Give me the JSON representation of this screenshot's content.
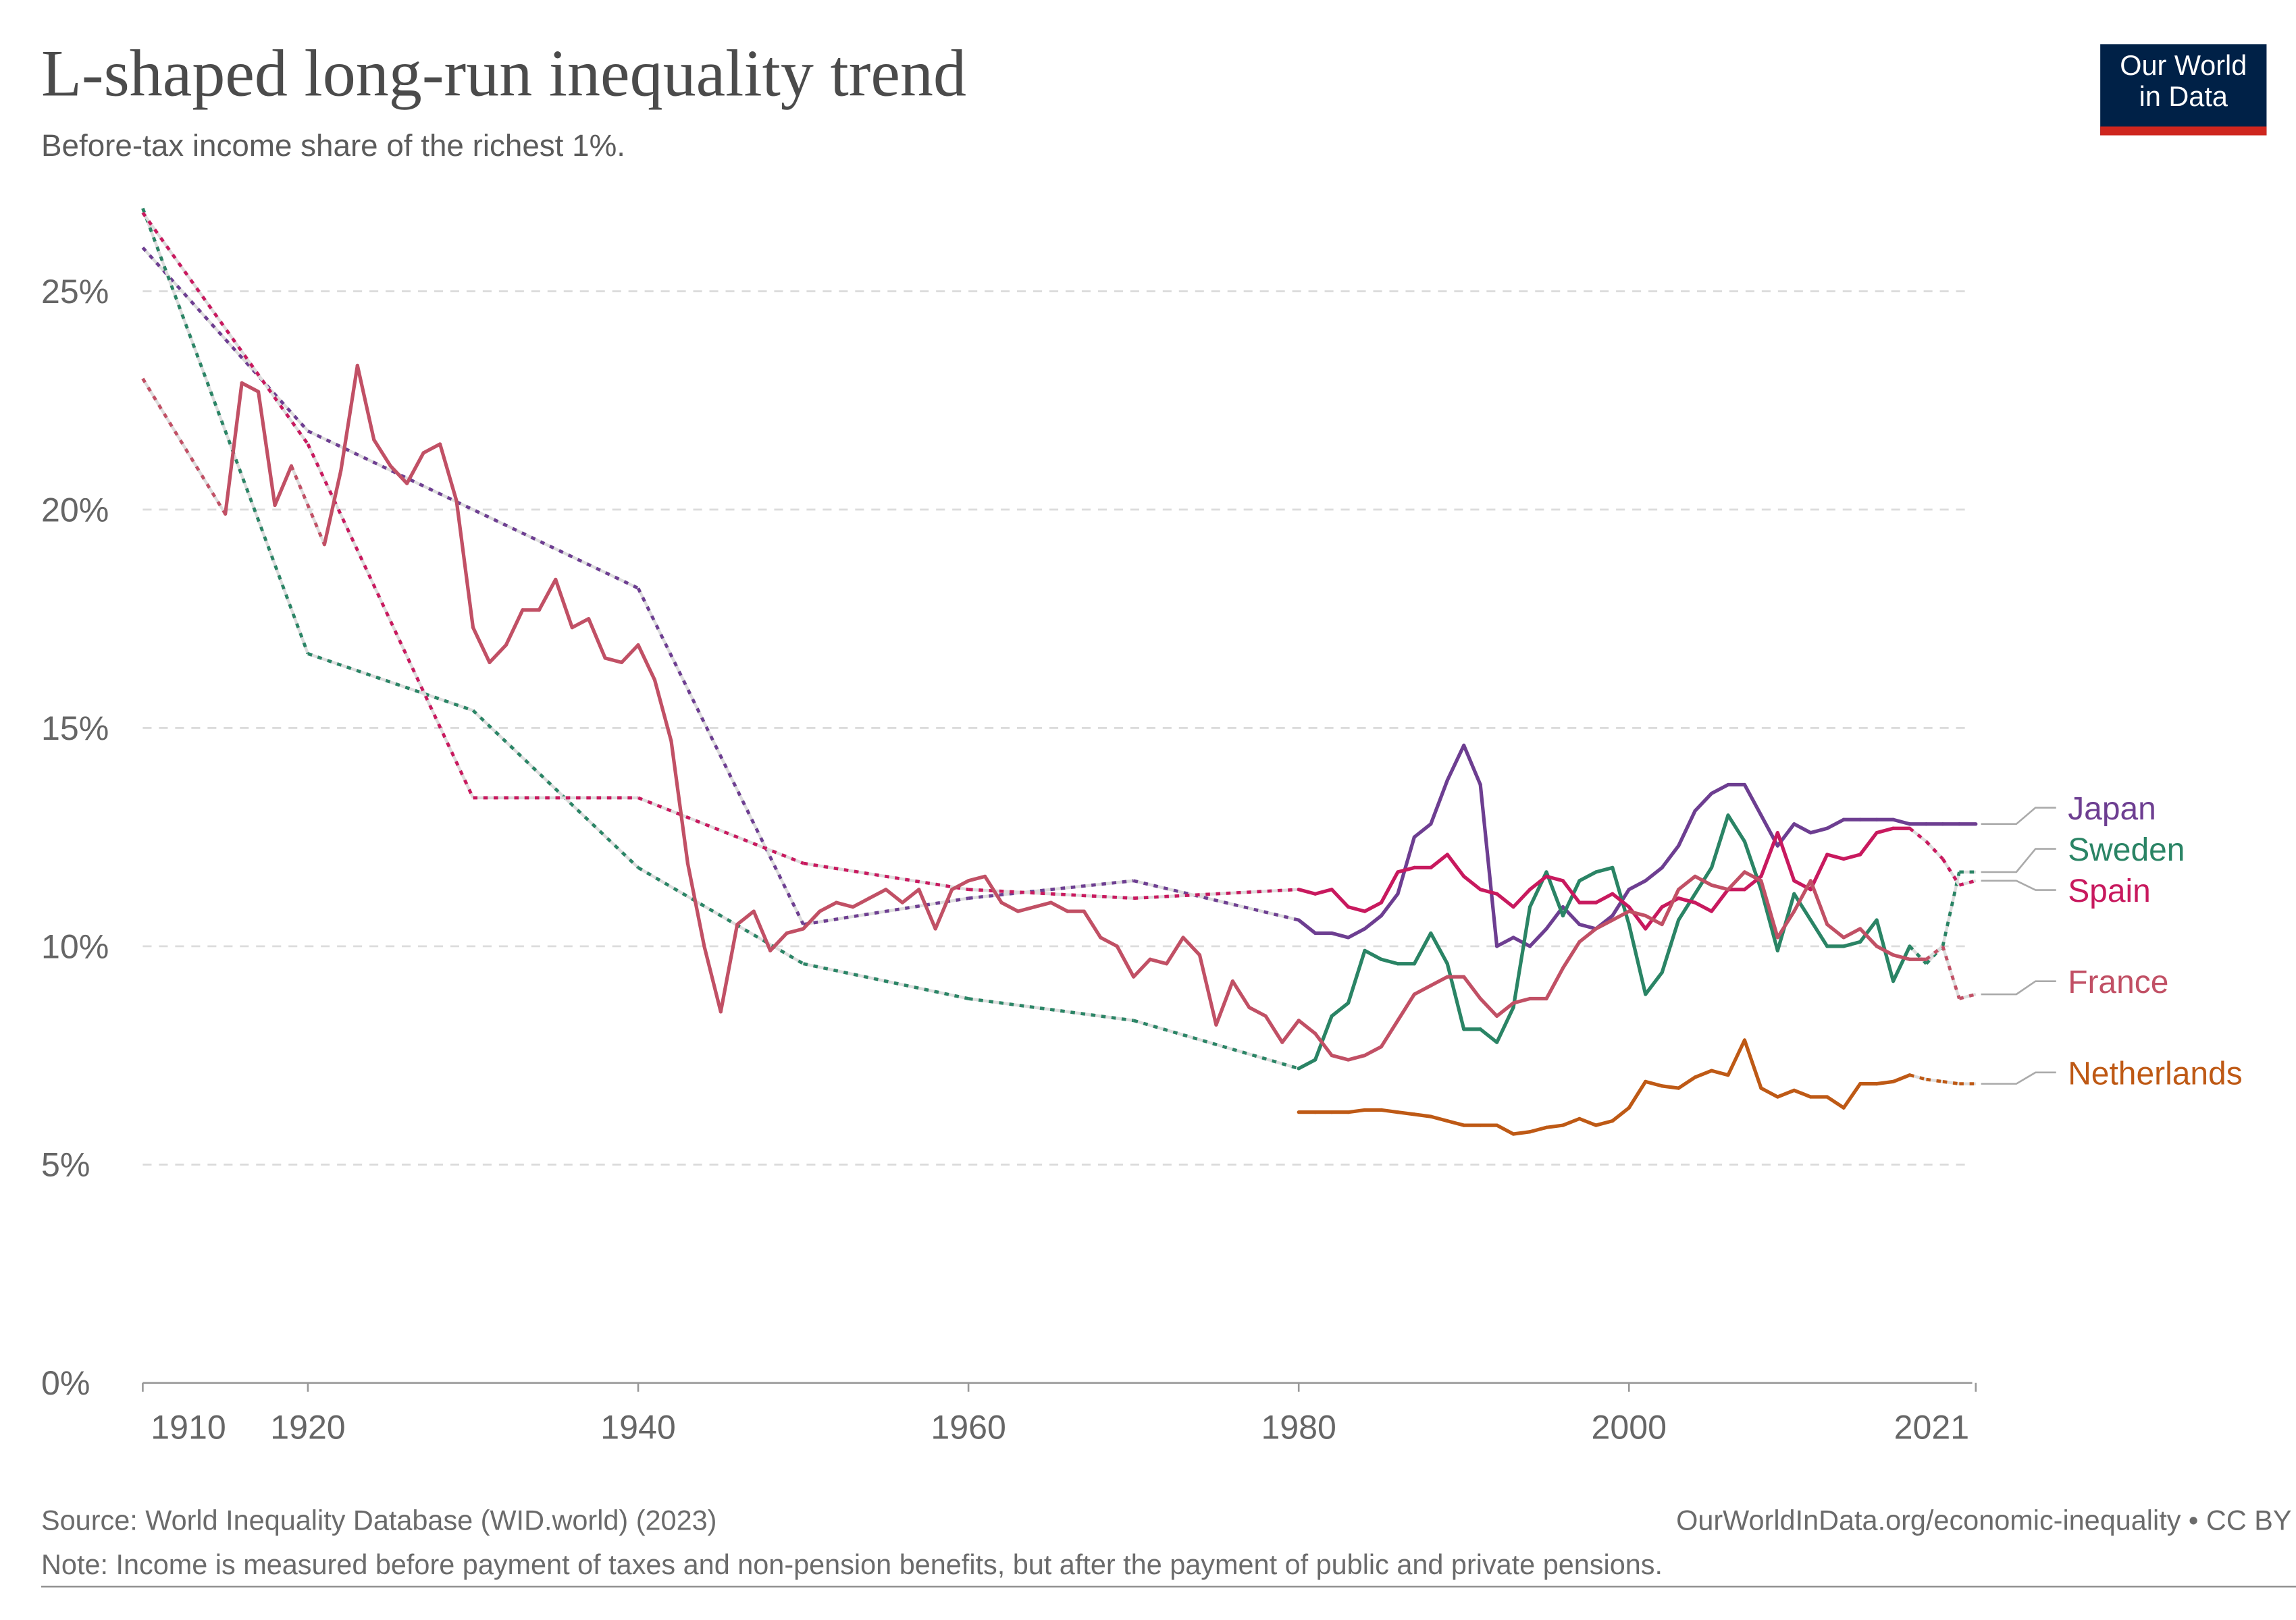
{
  "header": {
    "title": "L-shaped long-run inequality trend",
    "subtitle": "Before-tax income share of the richest 1%.",
    "logo_text": [
      "Our World",
      "in Data"
    ]
  },
  "chart_data": {
    "type": "line",
    "ylim": [
      0,
      27
    ],
    "xlim": [
      1910,
      2021
    ],
    "y_ticks": [
      0,
      5,
      10,
      15,
      20,
      25
    ],
    "y_tick_labels": [
      "0%",
      "5%",
      "10%",
      "15%",
      "20%",
      "25%"
    ],
    "x_ticks": [
      1910,
      1920,
      1940,
      1960,
      1980,
      2000,
      2021
    ],
    "x_tick_labels": [
      "1910",
      "1920",
      "1940",
      "1960",
      "1980",
      "2000",
      "2021"
    ],
    "grid": "horizontal dashed",
    "legend": "right, line-end labels",
    "series": [
      {
        "name": "Japan",
        "color": "#6d3e91",
        "dotted_after": null,
        "x": [
          1910,
          1920,
          1940,
          1950,
          1960,
          1970,
          1980,
          1981,
          1982,
          1983,
          1984,
          1985,
          1986,
          1987,
          1988,
          1989,
          1990,
          1991,
          1992,
          1993,
          1994,
          1995,
          1996,
          1997,
          1998,
          1999,
          2000,
          2001,
          2002,
          2003,
          2004,
          2005,
          2006,
          2007,
          2008,
          2009,
          2010,
          2011,
          2012,
          2013,
          2014,
          2015,
          2016,
          2017,
          2018,
          2019,
          2020,
          2021
        ],
        "y": [
          26.0,
          21.8,
          18.2,
          10.5,
          11.1,
          11.5,
          10.6,
          10.3,
          10.3,
          10.2,
          10.4,
          10.7,
          11.2,
          12.5,
          12.8,
          13.8,
          14.6,
          13.7,
          10.0,
          10.2,
          10.0,
          10.4,
          10.9,
          10.5,
          10.4,
          10.7,
          11.3,
          11.5,
          11.8,
          12.3,
          13.1,
          13.5,
          13.7,
          13.7,
          13.0,
          12.3,
          12.8,
          12.6,
          12.7,
          12.9,
          12.9,
          12.9,
          12.9,
          12.8,
          12.8,
          12.8,
          12.8,
          12.8
        ]
      },
      {
        "name": "Sweden",
        "color": "#2a8465",
        "dotted_after": 2017,
        "x": [
          1910,
          1920,
          1930,
          1940,
          1950,
          1960,
          1970,
          1980,
          1981,
          1982,
          1983,
          1984,
          1985,
          1986,
          1987,
          1988,
          1989,
          1990,
          1991,
          1992,
          1993,
          1994,
          1995,
          1996,
          1997,
          1998,
          1999,
          2000,
          2001,
          2002,
          2003,
          2004,
          2005,
          2006,
          2007,
          2008,
          2009,
          2010,
          2011,
          2012,
          2013,
          2014,
          2015,
          2016,
          2017,
          2018,
          2019,
          2020,
          2021
        ],
        "y": [
          26.9,
          16.7,
          15.4,
          11.8,
          9.6,
          8.8,
          8.3,
          7.2,
          7.4,
          8.4,
          8.7,
          9.9,
          9.7,
          9.6,
          9.6,
          10.3,
          9.6,
          8.1,
          8.1,
          7.8,
          8.6,
          10.9,
          11.7,
          10.7,
          11.5,
          11.7,
          11.8,
          10.5,
          8.9,
          9.4,
          10.6,
          11.2,
          11.8,
          13.0,
          12.4,
          11.3,
          9.9,
          11.2,
          10.6,
          10.0,
          10.0,
          10.1,
          10.6,
          9.2,
          10.0,
          9.6,
          10.0,
          11.7,
          11.7
        ]
      },
      {
        "name": "Spain",
        "color": "#c8195e",
        "dotted_after": 2017,
        "x": [
          1910,
          1920,
          1930,
          1940,
          1950,
          1960,
          1970,
          1980,
          1981,
          1982,
          1983,
          1984,
          1985,
          1986,
          1987,
          1988,
          1989,
          1990,
          1991,
          1992,
          1993,
          1994,
          1995,
          1996,
          1997,
          1998,
          1999,
          2000,
          2001,
          2002,
          2003,
          2004,
          2005,
          2006,
          2007,
          2008,
          2009,
          2010,
          2011,
          2012,
          2013,
          2014,
          2015,
          2016,
          2017,
          2018,
          2019,
          2020,
          2021
        ],
        "y": [
          26.8,
          21.5,
          13.4,
          13.4,
          11.9,
          11.3,
          11.1,
          11.3,
          11.2,
          11.3,
          10.9,
          10.8,
          11.0,
          11.7,
          11.8,
          11.8,
          12.1,
          11.6,
          11.3,
          11.2,
          10.9,
          11.3,
          11.6,
          11.5,
          11.0,
          11.0,
          11.2,
          10.9,
          10.4,
          10.9,
          11.1,
          11.0,
          10.8,
          11.3,
          11.3,
          11.6,
          12.6,
          11.5,
          11.3,
          12.1,
          12.0,
          12.1,
          12.6,
          12.7,
          12.7,
          12.4,
          12.0,
          11.4,
          11.5
        ]
      },
      {
        "name": "France",
        "color": "#c15065",
        "dotted_after": 2018,
        "x": [
          1910,
          1915,
          1916,
          1917,
          1918,
          1919,
          1921,
          1922,
          1923,
          1924,
          1925,
          1926,
          1927,
          1928,
          1929,
          1930,
          1931,
          1932,
          1933,
          1934,
          1935,
          1936,
          1937,
          1938,
          1939,
          1940,
          1941,
          1942,
          1943,
          1944,
          1945,
          1946,
          1947,
          1948,
          1949,
          1950,
          1951,
          1952,
          1953,
          1954,
          1955,
          1956,
          1957,
          1958,
          1959,
          1960,
          1961,
          1962,
          1963,
          1964,
          1965,
          1966,
          1967,
          1968,
          1969,
          1970,
          1971,
          1972,
          1973,
          1974,
          1975,
          1976,
          1977,
          1978,
          1979,
          1980,
          1981,
          1982,
          1983,
          1984,
          1985,
          1986,
          1987,
          1988,
          1989,
          1990,
          1991,
          1992,
          1993,
          1994,
          1995,
          1996,
          1997,
          1998,
          1999,
          2000,
          2001,
          2002,
          2003,
          2004,
          2005,
          2006,
          2007,
          2008,
          2009,
          2010,
          2011,
          2012,
          2013,
          2014,
          2015,
          2016,
          2017,
          2018,
          2019,
          2020,
          2021
        ],
        "y": [
          23.0,
          19.9,
          22.9,
          22.7,
          20.1,
          21.0,
          19.2,
          20.9,
          23.3,
          21.6,
          21.0,
          20.6,
          21.3,
          21.5,
          20.2,
          17.3,
          16.5,
          16.9,
          17.7,
          17.7,
          18.4,
          17.3,
          17.5,
          16.6,
          16.5,
          16.9,
          16.1,
          14.7,
          11.9,
          10.0,
          8.5,
          10.5,
          10.8,
          9.9,
          10.3,
          10.4,
          10.8,
          11.0,
          10.9,
          11.1,
          11.3,
          11.0,
          11.3,
          10.4,
          11.3,
          11.5,
          11.6,
          11.0,
          10.8,
          10.9,
          11.0,
          10.8,
          10.8,
          10.2,
          10.0,
          9.3,
          9.7,
          9.6,
          10.2,
          9.8,
          8.2,
          9.2,
          8.6,
          8.4,
          7.8,
          8.3,
          8.0,
          7.5,
          7.4,
          7.5,
          7.7,
          8.3,
          8.9,
          9.1,
          9.3,
          9.3,
          8.8,
          8.4,
          8.7,
          8.8,
          8.8,
          9.5,
          10.1,
          10.4,
          10.6,
          10.8,
          10.7,
          10.5,
          11.3,
          11.6,
          11.4,
          11.3,
          11.7,
          11.5,
          10.2,
          10.8,
          11.5,
          10.5,
          10.2,
          10.4,
          10.0,
          9.8,
          9.7,
          9.7,
          10.0,
          8.8,
          8.9
        ]
      },
      {
        "name": "Netherlands",
        "color": "#be5915",
        "dotted_after": 2017,
        "x": [
          1980,
          1981,
          1982,
          1983,
          1984,
          1985,
          1986,
          1987,
          1988,
          1989,
          1990,
          1991,
          1992,
          1993,
          1994,
          1995,
          1996,
          1997,
          1998,
          1999,
          2000,
          2001,
          2002,
          2003,
          2004,
          2005,
          2006,
          2007,
          2008,
          2009,
          2010,
          2011,
          2012,
          2013,
          2014,
          2015,
          2016,
          2017,
          2018,
          2019,
          2020,
          2021
        ],
        "y": [
          6.2,
          6.2,
          6.2,
          6.2,
          6.25,
          6.25,
          6.2,
          6.15,
          6.1,
          6.0,
          5.9,
          5.9,
          5.9,
          5.7,
          5.75,
          5.85,
          5.9,
          6.05,
          5.9,
          6.0,
          6.3,
          6.9,
          6.8,
          6.75,
          7.0,
          7.15,
          7.05,
          7.85,
          6.75,
          6.55,
          6.7,
          6.55,
          6.55,
          6.3,
          6.85,
          6.85,
          6.9,
          7.05,
          6.95,
          6.9,
          6.85,
          6.85
        ]
      }
    ]
  },
  "footer": {
    "source": "Source: World Inequality Database (WID.world) (2023)",
    "credit": "OurWorldInData.org/economic-inequality • CC BY",
    "note": "Note: Income is measured before payment of taxes and non-pension benefits, but after the payment of public and private pensions."
  }
}
